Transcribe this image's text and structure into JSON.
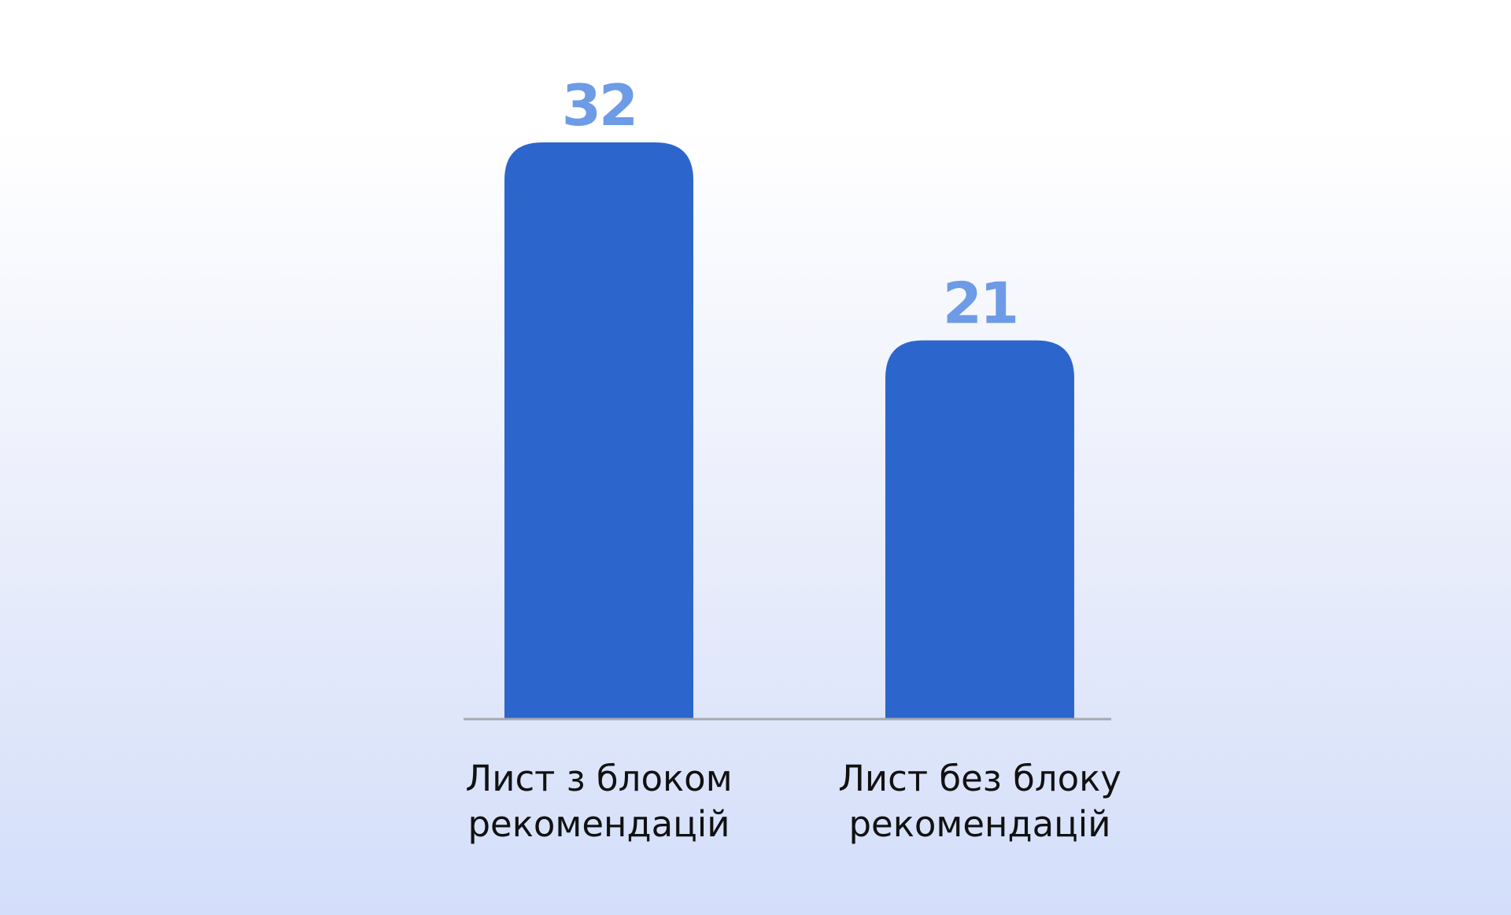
{
  "chart_data": {
    "type": "bar",
    "title": "",
    "xlabel": "",
    "ylabel": "",
    "categories": [
      [
        "Лист з блоком",
        "рекомендацій"
      ],
      [
        "Лист без блоку",
        "рекомендацій"
      ]
    ],
    "values": [
      32,
      21
    ],
    "data_labels": [
      "32",
      "21"
    ],
    "ylim": [
      0,
      32
    ],
    "grid": false,
    "legend": "none",
    "colors": {
      "bar": "#2c66cc",
      "value_label": "#6d9be6",
      "axis_line": "#a7a9ae",
      "category_label": "#111111"
    }
  }
}
